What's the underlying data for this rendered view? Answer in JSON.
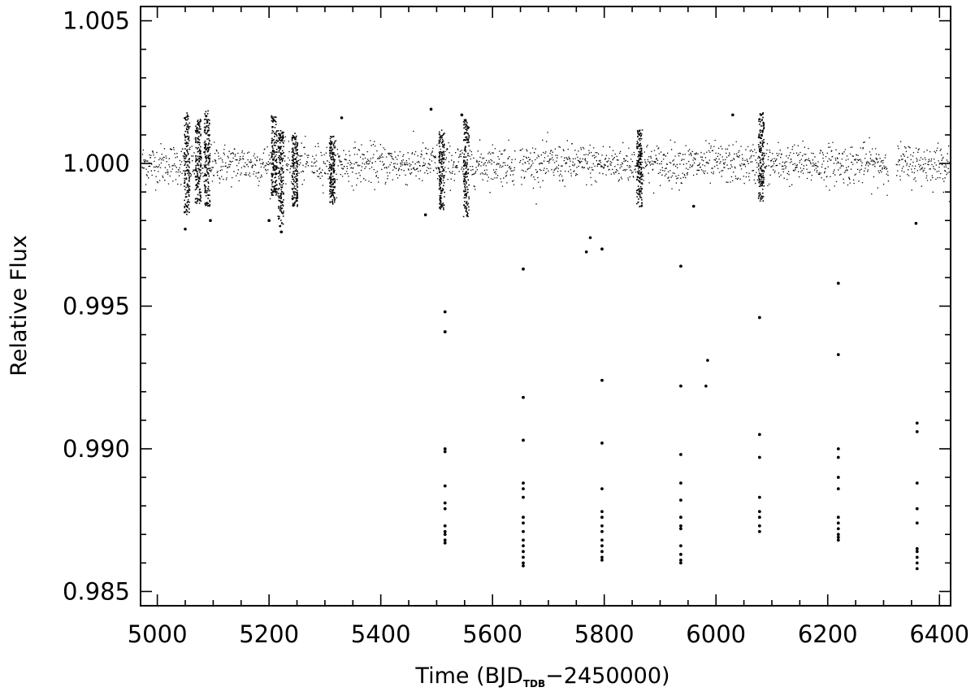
{
  "chart_data": {
    "type": "scatter",
    "title": "",
    "xlabel": {
      "main": "Time (BJD",
      "subscript": "TDB",
      "suffix": "−2450000)"
    },
    "ylabel": "Relative Flux",
    "xlim": [
      4970,
      6420
    ],
    "ylim": [
      0.9845,
      1.0055
    ],
    "x_ticks": [
      {
        "value": 5000,
        "label": "5000"
      },
      {
        "value": 5200,
        "label": "5200"
      },
      {
        "value": 5400,
        "label": "5400"
      },
      {
        "value": 5600,
        "label": "5600"
      },
      {
        "value": 5800,
        "label": "5800"
      },
      {
        "value": 6000,
        "label": "6000"
      },
      {
        "value": 6200,
        "label": "6200"
      },
      {
        "value": 6400,
        "label": "6400"
      }
    ],
    "x_minor_step": 50,
    "y_ticks": [
      {
        "value": 0.985,
        "label": "0.985"
      },
      {
        "value": 0.99,
        "label": "0.990"
      },
      {
        "value": 0.995,
        "label": "0.995"
      },
      {
        "value": 1.0,
        "label": "1.000"
      },
      {
        "value": 1.005,
        "label": "1.005"
      }
    ],
    "y_minor_step": 0.001,
    "grid": false,
    "legend": "none",
    "marker_color": "#000000",
    "baseline": {
      "center": 1.0,
      "scatter": 0.00035,
      "segments": [
        [
          4972,
          5270
        ],
        [
          5275,
          5548
        ],
        [
          5558,
          5640
        ],
        [
          5648,
          6308
        ],
        [
          6322,
          6418
        ]
      ],
      "spikes": [
        {
          "x": 5052,
          "low": 0.9982,
          "high": 1.0018
        },
        {
          "x": 5072,
          "low": 0.9986,
          "high": 1.0016
        },
        {
          "x": 5088,
          "low": 0.9985,
          "high": 1.0019
        },
        {
          "x": 5208,
          "low": 0.9989,
          "high": 1.0017
        },
        {
          "x": 5220,
          "low": 0.9978,
          "high": 1.0012
        },
        {
          "x": 5245,
          "low": 0.9985,
          "high": 1.0011
        },
        {
          "x": 5312,
          "low": 0.9986,
          "high": 1.001
        },
        {
          "x": 5508,
          "low": 0.9984,
          "high": 1.0012
        },
        {
          "x": 5552,
          "low": 0.9981,
          "high": 1.0016
        },
        {
          "x": 5862,
          "low": 0.9985,
          "high": 1.0012
        },
        {
          "x": 6080,
          "low": 0.9987,
          "high": 1.0018
        }
      ]
    },
    "transits": [
      {
        "x": 5515,
        "values": [
          0.9948,
          0.9941,
          0.99,
          0.9899,
          0.9887,
          0.9881,
          0.9879,
          0.9873,
          0.9871,
          0.987,
          0.9868,
          0.9867
        ]
      },
      {
        "x": 5655,
        "values": [
          0.9963,
          0.9918,
          0.9903,
          0.9888,
          0.9886,
          0.9883,
          0.9876,
          0.9874,
          0.9871,
          0.9868,
          0.9866,
          0.9864,
          0.9862,
          0.986,
          0.9859
        ]
      },
      {
        "x": 5796,
        "values": [
          0.997,
          0.9924,
          0.9902,
          0.9886,
          0.9878,
          0.9876,
          0.9873,
          0.9871,
          0.9868,
          0.9866,
          0.9864,
          0.9862,
          0.9861
        ]
      },
      {
        "x": 5937,
        "values": [
          0.9964,
          0.9922,
          0.9898,
          0.9888,
          0.9882,
          0.9876,
          0.9873,
          0.9872,
          0.9866,
          0.9863,
          0.9861,
          0.986
        ]
      },
      {
        "x": 6078,
        "values": [
          0.9946,
          0.9905,
          0.9897,
          0.9883,
          0.9878,
          0.9876,
          0.9873,
          0.9871
        ]
      },
      {
        "x": 6219,
        "values": [
          0.9958,
          0.9933,
          0.99,
          0.9897,
          0.989,
          0.9886,
          0.9876,
          0.9874,
          0.9872,
          0.987,
          0.9869,
          0.9868
        ]
      },
      {
        "x": 6360,
        "values": [
          0.9909,
          0.9906,
          0.9888,
          0.9879,
          0.9874,
          0.9865,
          0.9864,
          0.9862,
          0.986,
          0.9858
        ]
      }
    ],
    "outliers": [
      {
        "x": 5768,
        "y": 0.9969
      },
      {
        "x": 5775,
        "y": 0.9974
      },
      {
        "x": 5985,
        "y": 0.9931
      },
      {
        "x": 5982,
        "y": 0.9922
      },
      {
        "x": 5050,
        "y": 0.9977
      },
      {
        "x": 5095,
        "y": 0.998
      },
      {
        "x": 5222,
        "y": 0.9976
      },
      {
        "x": 5200,
        "y": 0.998
      },
      {
        "x": 5480,
        "y": 0.9982
      },
      {
        "x": 5490,
        "y": 1.0019
      },
      {
        "x": 5545,
        "y": 1.0017
      },
      {
        "x": 5960,
        "y": 0.9985
      },
      {
        "x": 6358,
        "y": 0.9979
      },
      {
        "x": 6030,
        "y": 1.0017
      },
      {
        "x": 5330,
        "y": 1.0016
      }
    ]
  }
}
